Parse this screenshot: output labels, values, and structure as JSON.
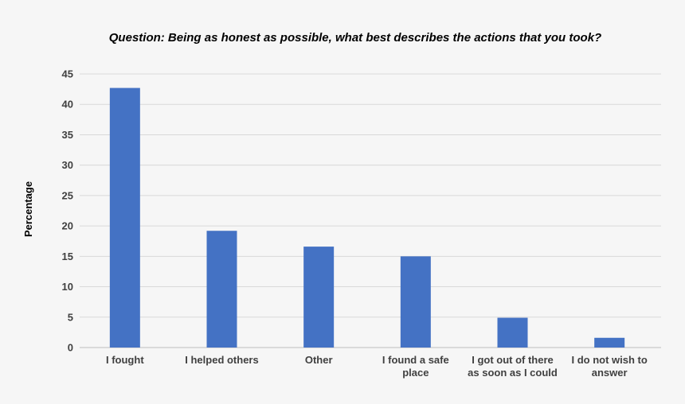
{
  "chart_data": {
    "type": "bar",
    "title": "Question: Being as honest as possible, what best describes the actions that you took?",
    "xlabel": "",
    "ylabel": "Percentage",
    "ylim": [
      0,
      45
    ],
    "yticks": [
      0,
      5,
      10,
      15,
      20,
      25,
      30,
      35,
      40,
      45
    ],
    "grid": true,
    "legend": "none",
    "bar_color": "#4472c4",
    "categories": [
      [
        "I fought"
      ],
      [
        "I helped others"
      ],
      [
        "Other"
      ],
      [
        "I found a safe",
        "place"
      ],
      [
        "I got out of there",
        "as soon as I could"
      ],
      [
        "I do not wish to",
        "answer"
      ]
    ],
    "values": [
      42.7,
      19.2,
      16.6,
      15.0,
      4.9,
      1.6
    ]
  }
}
